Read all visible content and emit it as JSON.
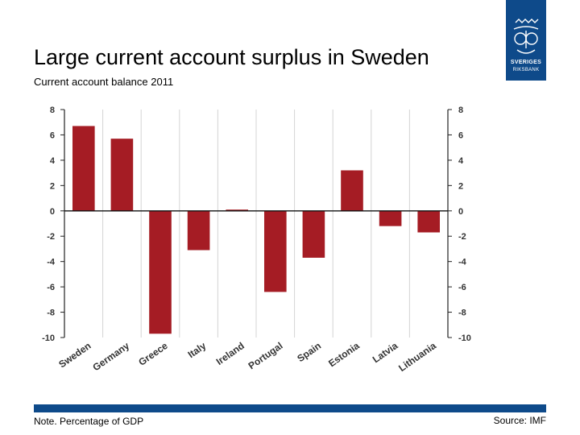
{
  "header": {
    "title": "Large current account surplus in Sweden",
    "subtitle": "Current account balance 2011"
  },
  "logo": {
    "wordmark_line1": "SVERIGES",
    "wordmark_line2": "RIKSBANK",
    "color": "#0e4a8a"
  },
  "footer": {
    "note": "Note. Percentage of GDP",
    "source": "Source: IMF"
  },
  "chart_data": {
    "type": "bar",
    "title": "Current account balance 2011",
    "xlabel": "",
    "ylabel": "Percentage of GDP",
    "ylim": [
      -10,
      8
    ],
    "yticks": [
      8,
      6,
      4,
      2,
      0,
      -2,
      -4,
      -6,
      -8,
      -10
    ],
    "categories": [
      "Sweden",
      "Germany",
      "Greece",
      "Italy",
      "Ireland",
      "Portugal",
      "Spain",
      "Estonia",
      "Latvia",
      "Lithuania"
    ],
    "values": [
      6.7,
      5.7,
      -9.7,
      -3.1,
      0.1,
      -6.4,
      -3.7,
      3.2,
      -1.2,
      -1.7
    ],
    "bar_color": "#a51c24",
    "grid": true,
    "right_axis": true
  }
}
